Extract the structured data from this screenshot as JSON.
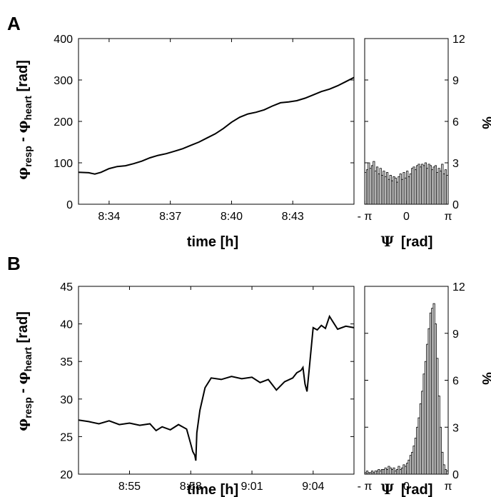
{
  "panels": [
    {
      "label": "A",
      "ylabel": {
        "phi1": "φ",
        "sub1": "resp",
        "dash": " - ",
        "phi2": "φ",
        "sub2": "heart",
        "unit": "[rad]"
      },
      "xlabel": "time [h]",
      "hist_xlabel": {
        "psi": "Ψ",
        "unit": "[rad]"
      },
      "hist_ylabel": "%"
    },
    {
      "label": "B",
      "ylabel": {
        "phi1": "φ",
        "sub1": "resp",
        "dash": " - ",
        "phi2": "φ",
        "sub2": "heart",
        "unit": "[rad]"
      },
      "xlabel": "time [h]",
      "hist_xlabel": {
        "psi": "Ψ",
        "unit": "[rad]"
      },
      "hist_ylabel": "%"
    }
  ],
  "chart_data": [
    {
      "type": "line",
      "panel": "A",
      "xlabel": "time [h]",
      "ylabel": "φresp - φheart [rad]",
      "x_tick_labels": [
        "8:34",
        "8:37",
        "8:40",
        "8:43"
      ],
      "x_tick_minutes": [
        34,
        37,
        40,
        43
      ],
      "xlim_minutes": [
        32.5,
        46.0
      ],
      "ylim": [
        0,
        400
      ],
      "y_ticks": [
        0,
        100,
        200,
        300,
        400
      ],
      "series": [
        {
          "x_minutes": [
            32.5,
            33.0,
            33.3,
            33.6,
            34.0,
            34.4,
            34.8,
            35.2,
            35.6,
            36.0,
            36.4,
            36.8,
            37.2,
            37.6,
            38.0,
            38.4,
            38.8,
            39.2,
            39.6,
            40.0,
            40.4,
            40.8,
            41.2,
            41.6,
            42.0,
            42.4,
            42.8,
            43.2,
            43.6,
            44.0,
            44.4,
            44.8,
            45.2,
            45.6,
            46.0
          ],
          "y": [
            77,
            76,
            73,
            77,
            86,
            91,
            93,
            98,
            104,
            112,
            118,
            122,
            128,
            134,
            142,
            150,
            160,
            170,
            183,
            198,
            210,
            218,
            222,
            228,
            237,
            245,
            247,
            250,
            256,
            264,
            272,
            278,
            286,
            296,
            306
          ]
        }
      ]
    },
    {
      "type": "bar",
      "panel": "A-histogram",
      "xlabel": "Ψ [rad]",
      "ylabel": "%",
      "x_tick_labels": [
        "- π",
        "0",
        "π"
      ],
      "xlim": [
        -3.1416,
        3.1416
      ],
      "ylim": [
        0,
        12
      ],
      "y_ticks": [
        0,
        3,
        6,
        9,
        12
      ],
      "values": [
        2.3,
        2.5,
        3.0,
        2.6,
        2.8,
        3.1,
        2.4,
        2.7,
        2.2,
        2.6,
        2.1,
        2.4,
        2.0,
        2.3,
        1.8,
        2.1,
        1.7,
        2.0,
        1.9,
        1.6,
        2.0,
        2.2,
        1.8,
        2.3,
        1.9,
        2.4,
        2.0,
        2.2,
        2.6,
        2.7,
        2.5,
        2.8,
        2.9,
        2.7,
        2.9,
        2.8,
        3.0,
        2.6,
        2.9,
        2.8,
        2.5,
        2.7,
        2.8,
        2.3,
        2.6,
        2.4,
        2.9,
        2.2,
        2.5,
        2.1
      ]
    },
    {
      "type": "line",
      "panel": "B",
      "xlabel": "time [h]",
      "ylabel": "φresp - φheart [rad]",
      "x_tick_labels": [
        "8:55",
        "8:58",
        "9:01",
        "9:04"
      ],
      "x_tick_minutes": [
        55,
        58,
        61,
        64
      ],
      "xlim_minutes": [
        52.5,
        66.0
      ],
      "ylim": [
        20,
        45
      ],
      "y_ticks": [
        20,
        25,
        30,
        35,
        40,
        45
      ],
      "series": [
        {
          "x_minutes": [
            52.5,
            53.0,
            53.5,
            54.0,
            54.5,
            55.0,
            55.5,
            56.0,
            56.3,
            56.6,
            57.0,
            57.4,
            57.8,
            58.0,
            58.1,
            58.2,
            58.25,
            58.3,
            58.45,
            58.7,
            59.0,
            59.5,
            60.0,
            60.5,
            61.0,
            61.4,
            61.8,
            62.2,
            62.6,
            63.0,
            63.2,
            63.4,
            63.5,
            63.6,
            63.7,
            63.8,
            64.0,
            64.2,
            64.4,
            64.6,
            64.8,
            65.2,
            65.6,
            66.0
          ],
          "y": [
            27.2,
            27.0,
            26.7,
            27.1,
            26.6,
            26.8,
            26.5,
            26.7,
            25.8,
            26.3,
            25.9,
            26.6,
            26.0,
            24.0,
            23.0,
            22.5,
            21.8,
            25.5,
            28.5,
            31.5,
            32.8,
            32.6,
            33.0,
            32.7,
            32.9,
            32.2,
            32.6,
            31.2,
            32.3,
            32.8,
            33.5,
            33.8,
            34.2,
            32.0,
            31.0,
            33.8,
            39.5,
            39.2,
            39.8,
            39.4,
            41.0,
            39.3,
            39.7,
            39.5
          ]
        }
      ]
    },
    {
      "type": "bar",
      "panel": "B-histogram",
      "xlabel": "Ψ [rad]",
      "ylabel": "%",
      "x_tick_labels": [
        "- π",
        "0",
        "π"
      ],
      "xlim": [
        -3.1416,
        3.1416
      ],
      "ylim": [
        0,
        12
      ],
      "y_ticks": [
        0,
        3,
        6,
        9,
        12
      ],
      "values": [
        0.1,
        0.2,
        0.1,
        0.1,
        0.2,
        0.1,
        0.2,
        0.2,
        0.3,
        0.2,
        0.3,
        0.3,
        0.4,
        0.3,
        0.5,
        0.4,
        0.3,
        0.4,
        0.2,
        0.3,
        0.5,
        0.3,
        0.4,
        0.6,
        0.5,
        0.7,
        0.9,
        1.2,
        1.4,
        1.8,
        2.3,
        3.0,
        3.6,
        4.5,
        5.3,
        6.4,
        7.2,
        8.3,
        9.3,
        10.3,
        10.6,
        10.9,
        9.6,
        7.4,
        5.0,
        3.0,
        1.4,
        0.6,
        0.3,
        0.2
      ]
    }
  ]
}
